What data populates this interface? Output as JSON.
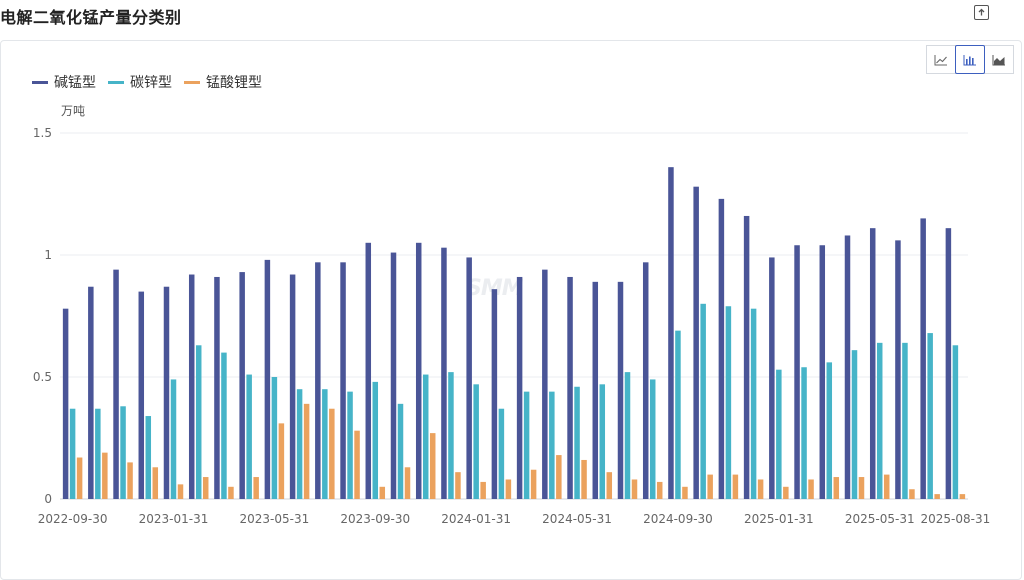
{
  "page": {
    "title": "电解二氧化锰产量分类别"
  },
  "toolbar": {
    "chart_types": [
      "line",
      "bar",
      "area"
    ],
    "active": "bar"
  },
  "watermark": "SMM",
  "colors": {
    "series1": "#4a5597",
    "series2": "#46b4c8",
    "series3": "#eba25e",
    "grid": "#ebedf0",
    "axis": "#666666"
  },
  "chart_data": {
    "type": "bar",
    "title": "电解二氧化锰产量分类别",
    "ylabel": "万吨",
    "ylim": [
      0,
      1.5
    ],
    "yticks": [
      "0",
      "0.5",
      "1",
      "1.5"
    ],
    "grid": true,
    "legend_position": "top-left",
    "categories": [
      "2022-09-30",
      "2022-10-31",
      "2022-11-30",
      "2022-12-31",
      "2023-01-31",
      "2023-02-28",
      "2023-03-31",
      "2023-04-30",
      "2023-05-31",
      "2023-06-30",
      "2023-07-31",
      "2023-08-31",
      "2023-09-30",
      "2023-10-31",
      "2023-11-30",
      "2023-12-31",
      "2024-01-31",
      "2024-02-29",
      "2024-03-31",
      "2024-04-30",
      "2024-05-31",
      "2024-06-30",
      "2024-07-31",
      "2024-08-31",
      "2024-09-30",
      "2024-10-31",
      "2024-11-30",
      "2024-12-31",
      "2025-01-31",
      "2025-02-28",
      "2025-03-31",
      "2025-04-30",
      "2025-05-31",
      "2025-06-30",
      "2025-07-31",
      "2025-08-31"
    ],
    "xtick_labels": [
      "2022-09-30",
      "2023-01-31",
      "2023-05-31",
      "2023-09-30",
      "2024-01-31",
      "2024-05-31",
      "2024-09-30",
      "2025-01-31",
      "2025-05-31",
      "2025-08-31"
    ],
    "series": [
      {
        "name": "碱锰型",
        "color": "#4a5597",
        "values": [
          0.78,
          0.87,
          0.94,
          0.85,
          0.87,
          0.92,
          0.91,
          0.93,
          0.98,
          0.92,
          0.97,
          0.97,
          1.05,
          1.01,
          1.05,
          1.03,
          0.99,
          0.86,
          0.91,
          0.94,
          0.91,
          0.89,
          0.89,
          0.97,
          1.36,
          1.28,
          1.23,
          1.16,
          0.99,
          1.04,
          1.04,
          1.08,
          1.11,
          1.06,
          1.15,
          1.11
        ]
      },
      {
        "name": "碳锌型",
        "color": "#46b4c8",
        "values": [
          0.37,
          0.37,
          0.38,
          0.34,
          0.49,
          0.63,
          0.6,
          0.51,
          0.5,
          0.45,
          0.45,
          0.44,
          0.48,
          0.39,
          0.51,
          0.52,
          0.47,
          0.37,
          0.44,
          0.44,
          0.46,
          0.47,
          0.52,
          0.49,
          0.69,
          0.8,
          0.79,
          0.78,
          0.53,
          0.54,
          0.56,
          0.61,
          0.64,
          0.64,
          0.68,
          0.63
        ]
      },
      {
        "name": "锰酸锂型",
        "color": "#eba25e",
        "values": [
          0.17,
          0.19,
          0.15,
          0.13,
          0.06,
          0.09,
          0.05,
          0.09,
          0.31,
          0.39,
          0.37,
          0.28,
          0.05,
          0.13,
          0.27,
          0.11,
          0.07,
          0.08,
          0.12,
          0.18,
          0.16,
          0.11,
          0.08,
          0.07,
          0.05,
          0.1,
          0.1,
          0.08,
          0.05,
          0.08,
          0.09,
          0.09,
          0.1,
          0.04,
          0.02,
          0.02
        ]
      }
    ]
  }
}
